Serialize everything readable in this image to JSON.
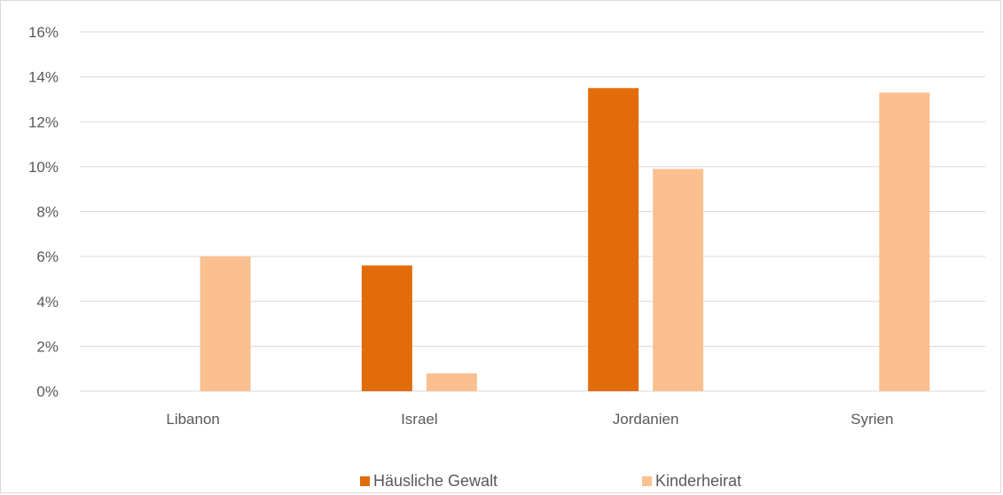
{
  "chart_data": {
    "type": "bar",
    "categories": [
      "Libanon",
      "Israel",
      "Jordanien",
      "Syrien"
    ],
    "series": [
      {
        "name": "Häusliche Gewalt",
        "values": [
          null,
          5.6,
          13.5,
          null
        ],
        "color": "#e36c0a"
      },
      {
        "name": "Kinderheirat",
        "values": [
          6.0,
          0.8,
          9.9,
          13.3
        ],
        "color": "#fac090"
      }
    ],
    "y_ticks": [
      "0%",
      "2%",
      "4%",
      "6%",
      "8%",
      "10%",
      "12%",
      "14%",
      "16%"
    ],
    "ylim": [
      0,
      16
    ],
    "grid": true,
    "legend_position": "bottom",
    "gridline_color": "#d9d9d9",
    "title": "",
    "xlabel": "",
    "ylabel": ""
  }
}
